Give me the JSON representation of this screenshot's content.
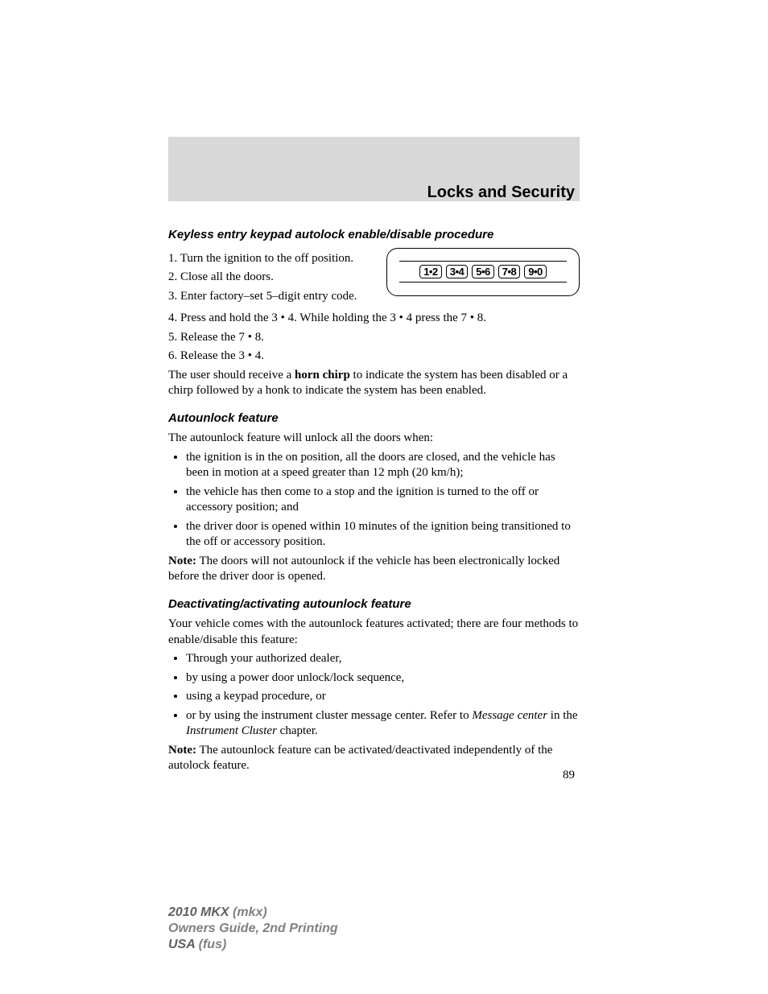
{
  "header": {
    "section_title": "Locks and Security"
  },
  "sections": {
    "autolock": {
      "heading": "Keyless entry keypad autolock enable/disable procedure",
      "steps": [
        "1. Turn the ignition to the off position.",
        "2. Close all the doors.",
        "3. Enter factory–set 5–digit entry code.",
        "4. Press and hold the 3 • 4. While holding the 3 • 4 press the 7 • 8.",
        "5. Release the 7 • 8.",
        "6. Release the 3 • 4."
      ],
      "result_pre": "The user should receive a ",
      "result_bold": "horn chirp",
      "result_post": " to indicate the system has been disabled or a chirp followed by a honk to indicate the system has been enabled."
    },
    "autounlock": {
      "heading": "Autounlock feature",
      "intro": "The autounlock feature will unlock all the doors when:",
      "bullets": [
        "the ignition is in the on position, all the doors are closed, and the vehicle has been in motion at a speed greater than 12 mph (20 km/h);",
        "the vehicle has then come to a stop and the ignition is turned to the off or accessory position; and",
        "the driver door is opened within 10 minutes of the ignition being transitioned to the off or accessory position."
      ],
      "note_label": "Note:",
      "note_text": " The doors will not autounlock if the vehicle has been electronically locked before the driver door is opened."
    },
    "deactivate": {
      "heading": "Deactivating/activating autounlock feature",
      "intro": "Your vehicle comes with the autounlock features activated; there are four methods to enable/disable this feature:",
      "bullets_plain": [
        "Through your authorized dealer,",
        "by using a power door unlock/lock sequence,",
        "using a keypad procedure, or"
      ],
      "bullet4_pre": "or by using the instrument cluster message center. Refer to ",
      "bullet4_i1": "Message center",
      "bullet4_mid": " in the ",
      "bullet4_i2": "Instrument Cluster",
      "bullet4_post": " chapter.",
      "note_label": "Note:",
      "note_text": " The autounlock feature can be activated/deactivated independently of the autolock feature."
    }
  },
  "keypad": {
    "buttons": [
      "1•2",
      "3•4",
      "5•6",
      "7•8",
      "9•0"
    ]
  },
  "page_number": "89",
  "footer": {
    "line1_bold": "2010 MKX ",
    "line1_light": "(mkx)",
    "line2": "Owners Guide, 2nd Printing",
    "line3_bold": "USA ",
    "line3_light": "(fus)"
  },
  "colors": {
    "header_band": "#d8d8d8",
    "footer_text": "#808080",
    "body_text": "#000000",
    "background": "#ffffff"
  },
  "typography": {
    "body_font": "Times New Roman",
    "heading_font": "Arial",
    "body_size_pt": 11,
    "header_title_size_pt": 15
  }
}
